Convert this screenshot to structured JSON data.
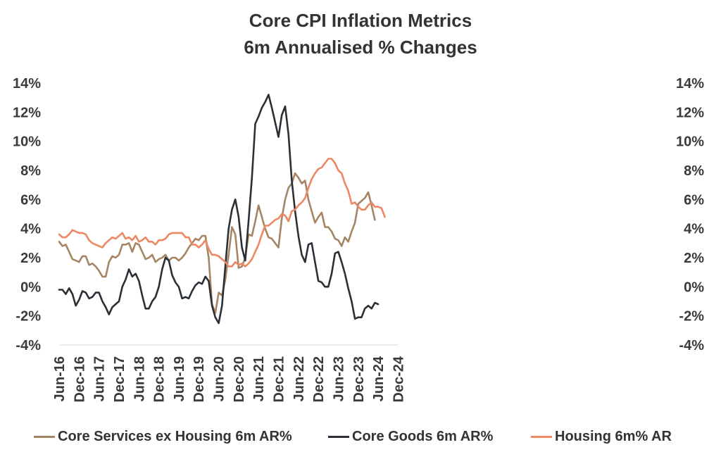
{
  "chart_data": {
    "type": "line",
    "title": "Core CPI Inflation Metrics",
    "subtitle": "6m Annualised % Changes",
    "xlabel": "",
    "ylabel": "",
    "x_tick_labels": [
      "Jun-16",
      "Dec-16",
      "Jun-17",
      "Dec-17",
      "Jun-18",
      "Dec-18",
      "Jun-19",
      "Dec-19",
      "Jun-20",
      "Dec-20",
      "Jun-21",
      "Dec-21",
      "Jun-22",
      "Dec-22",
      "Jun-23",
      "Dec-23",
      "Jun-24",
      "Dec-24"
    ],
    "x_range": [
      "Jun-16",
      "Dec-24"
    ],
    "y_tick_labels": [
      "14%",
      "12%",
      "10%",
      "8%",
      "6%",
      "4%",
      "2%",
      "0%",
      "-2%",
      "-4%"
    ],
    "ylim": [
      -4,
      14
    ],
    "y_axes": "left and right (mirrored)",
    "grid": false,
    "legend_position": "bottom",
    "series": [
      {
        "name": "Core Services ex Housing 6m AR%",
        "color": "#a68565",
        "start": "Jun-16",
        "values": [
          3.1,
          2.8,
          2.9,
          2.4,
          1.9,
          1.8,
          1.7,
          2.1,
          2.1,
          1.5,
          1.6,
          1.4,
          1.1,
          0.7,
          0.7,
          1.7,
          2.1,
          2.0,
          2.2,
          2.9,
          2.9,
          3.0,
          2.4,
          3.0,
          2.9,
          2.4,
          1.9,
          2.0,
          2.2,
          1.7,
          1.9,
          2.0,
          2.2,
          1.8,
          2.0,
          2.0,
          1.8,
          2.0,
          2.3,
          2.7,
          3.0,
          3.3,
          3.2,
          3.5,
          3.5,
          2.0,
          -1.2,
          -1.8,
          -0.4,
          -0.6,
          0.5,
          2.2,
          4.1,
          3.6,
          1.3,
          1.4,
          2.0,
          3.6,
          3.5,
          4.5,
          5.6,
          4.8,
          4.0,
          3.4,
          3.3,
          3.0,
          2.7,
          4.7,
          6.0,
          6.8,
          7.1,
          7.8,
          7.5,
          7.1,
          7.3,
          6.0,
          5.2,
          4.4,
          4.8,
          5.1,
          4.1,
          4.1,
          3.8,
          3.3,
          3.2,
          2.8,
          3.4,
          3.1,
          3.8,
          4.4,
          5.7,
          5.9,
          6.1,
          6.5,
          5.6,
          4.6
        ]
      },
      {
        "name": "Core Goods 6m AR%",
        "color": "#2b3036",
        "start": "Jun-16",
        "values": [
          -0.2,
          -0.2,
          -0.5,
          -0.1,
          -0.5,
          -1.3,
          -0.9,
          -0.3,
          -0.4,
          -0.8,
          -0.7,
          -0.4,
          -0.4,
          -1.0,
          -1.4,
          -1.9,
          -1.4,
          -1.2,
          -1.0,
          0.0,
          0.5,
          1.2,
          0.7,
          0.9,
          0.4,
          -0.6,
          -1.5,
          -1.5,
          -1.0,
          -0.7,
          0.0,
          1.2,
          2.0,
          1.8,
          0.8,
          0.3,
          0.0,
          -0.8,
          -0.7,
          -0.8,
          -0.3,
          0.1,
          0.3,
          0.2,
          0.7,
          0.4,
          -1.3,
          -2.1,
          -2.5,
          -1.3,
          1.4,
          4.0,
          5.3,
          6.0,
          4.8,
          2.7,
          1.8,
          4.5,
          7.5,
          11.2,
          11.7,
          12.3,
          12.7,
          13.2,
          12.3,
          11.3,
          10.3,
          11.8,
          12.4,
          10.5,
          7.3,
          5.2,
          3.5,
          2.2,
          1.7,
          2.9,
          3.0,
          1.7,
          0.4,
          0.3,
          0.0,
          0.0,
          0.9,
          2.3,
          2.4,
          1.7,
          0.9,
          -0.1,
          -1.0,
          -2.2,
          -2.1,
          -2.1,
          -1.5,
          -1.3,
          -1.5,
          -1.1,
          -1.2
        ]
      },
      {
        "name": "Housing 6m% AR",
        "color": "#ec8864",
        "start": "Jun-16",
        "values": [
          3.6,
          3.4,
          3.4,
          3.6,
          3.9,
          3.8,
          3.7,
          3.7,
          3.6,
          3.2,
          3.0,
          2.9,
          2.8,
          2.7,
          3.0,
          3.2,
          3.4,
          3.3,
          3.5,
          3.7,
          3.3,
          3.4,
          3.2,
          3.5,
          3.1,
          3.2,
          3.4,
          3.1,
          3.1,
          2.9,
          3.2,
          3.2,
          3.3,
          3.6,
          3.7,
          3.7,
          3.7,
          3.7,
          3.4,
          3.4,
          2.9,
          2.9,
          2.7,
          2.9,
          3.2,
          2.6,
          2.2,
          2.2,
          2.1,
          1.9,
          1.7,
          1.4,
          1.4,
          1.7,
          1.5,
          1.6,
          1.4,
          1.6,
          1.9,
          2.4,
          2.9,
          3.6,
          4.2,
          4.2,
          4.4,
          4.6,
          4.7,
          5.0,
          4.9,
          4.5,
          5.2,
          5.3,
          5.6,
          5.8,
          6.1,
          6.8,
          7.4,
          7.8,
          8.1,
          8.2,
          8.5,
          8.8,
          8.8,
          8.5,
          8.0,
          7.8,
          7.1,
          6.6,
          5.7,
          5.8,
          5.5,
          5.3,
          5.3,
          5.6,
          5.8,
          5.5,
          5.5,
          5.4,
          4.8
        ]
      }
    ]
  }
}
